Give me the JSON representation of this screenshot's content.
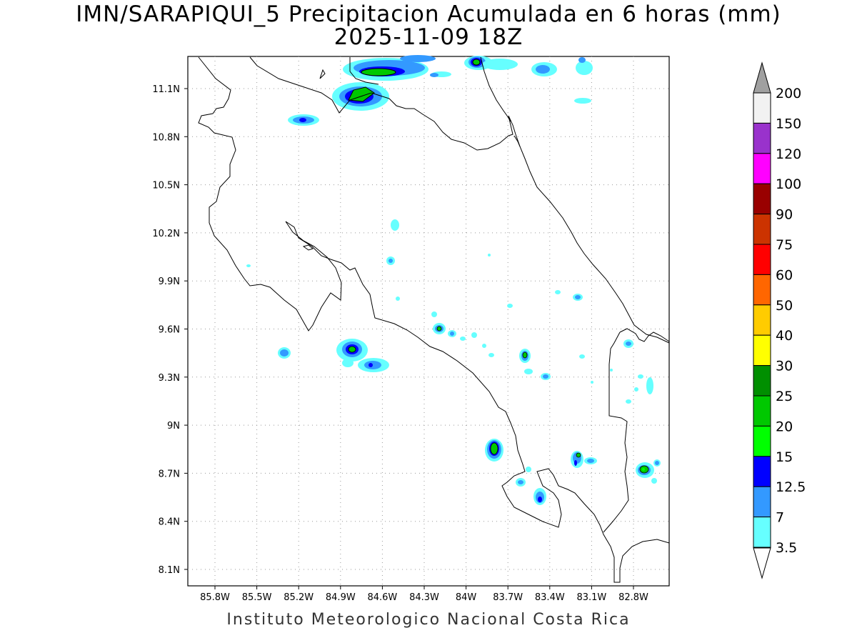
{
  "title": {
    "line1": "IMN/SARAPIQUI_5 Precipitacion Acumulada en 6 horas (mm)",
    "line2": "2025-11-09 18Z"
  },
  "footer": "Instituto Meteorologico Nacional Costa Rica",
  "axes": {
    "lon_labels": [
      "85.8W",
      "85.5W",
      "85.2W",
      "84.9W",
      "84.6W",
      "84.3W",
      "84W",
      "83.7W",
      "83.4W",
      "83.1W",
      "82.8W"
    ],
    "lat_labels": [
      "11.1N",
      "10.8N",
      "10.5N",
      "10.2N",
      "9.9N",
      "9.6N",
      "9.3N",
      "9N",
      "8.7N",
      "8.4N",
      "8.1N"
    ],
    "grid": "dotted"
  },
  "colorbar": {
    "labels": [
      "200",
      "150",
      "120",
      "100",
      "90",
      "75",
      "60",
      "50",
      "40",
      "30",
      "25",
      "20",
      "15",
      "12.5",
      "7",
      "3.5"
    ],
    "colors": [
      "#a0a0a0",
      "#f2f2f2",
      "#9932cc",
      "#ff00ff",
      "#990000",
      "#cc3300",
      "#ff0000",
      "#ff6600",
      "#ffcc00",
      "#ffff00",
      "#008f00",
      "#00c800",
      "#00ff00",
      "#0000ff",
      "#3399ff",
      "#66ffff"
    ]
  },
  "legend_colors": {
    "cyan": "#66ffff",
    "lightblue": "#3399ff",
    "blue": "#0000ff",
    "lightgreen": "#00ff00",
    "green": "#00c800"
  }
}
